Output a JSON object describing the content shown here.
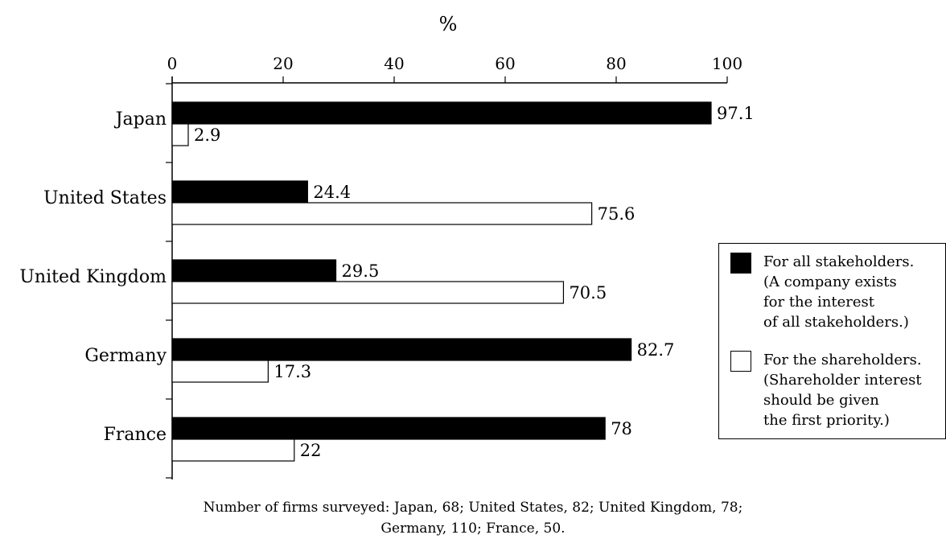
{
  "chart_data": {
    "type": "bar",
    "orientation": "horizontal",
    "axis_unit": "%",
    "xlim": [
      0,
      100
    ],
    "x_ticks": [
      "0",
      "20",
      "40",
      "60",
      "80",
      "100"
    ],
    "categories": [
      "Japan",
      "United States",
      "United Kingdom",
      "Germany",
      "France"
    ],
    "series": [
      {
        "values": [
          97.1,
          24.4,
          29.5,
          82.7,
          78
        ],
        "labels": [
          "97.1",
          "24.4",
          "29.5",
          "82.7",
          "78"
        ],
        "color": "#000000"
      },
      {
        "values": [
          2.9,
          75.6,
          70.5,
          17.3,
          22
        ],
        "labels": [
          "2.9",
          "75.6",
          "70.5",
          "17.3",
          "22"
        ],
        "color": "#ffffff"
      }
    ],
    "legend": {
      "position": "right",
      "entries": [
        {
          "label": "For all stakeholders.\n(A company exists\nfor the interest\nof all stakeholders.)",
          "color": "#000000"
        },
        {
          "label": "For the shareholders.\n(Shareholder interest\nshould be given\nthe first priority.)",
          "color": "#ffffff"
        }
      ]
    },
    "grid": false,
    "footnote": {
      "line1": "Number of firms surveyed: Japan, 68; United States, 82; United Kingdom, 78;",
      "line2": "Germany, 110; France, 50."
    }
  }
}
